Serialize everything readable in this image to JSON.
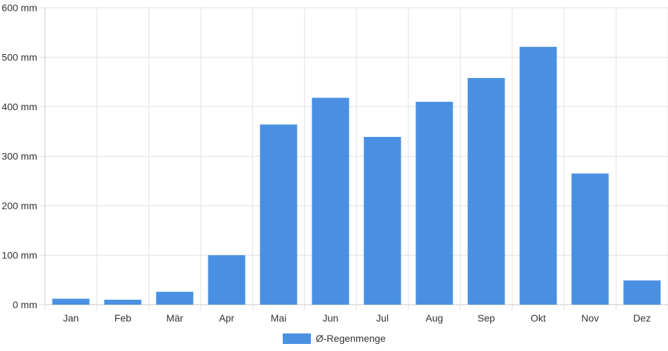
{
  "chart_data": {
    "type": "bar",
    "categories": [
      "Jan",
      "Feb",
      "Mär",
      "Apr",
      "Mai",
      "Jun",
      "Jul",
      "Aug",
      "Sep",
      "Okt",
      "Nov",
      "Dez"
    ],
    "series": [
      {
        "name": "Ø-Regenmenge",
        "values": [
          12,
          10,
          26,
          100,
          364,
          418,
          339,
          410,
          458,
          521,
          265,
          49
        ],
        "color": "#4a90e2"
      }
    ],
    "unit": "mm",
    "y_ticks": [
      "0 mm",
      "100 mm",
      "200 mm",
      "300 mm",
      "400 mm",
      "500 mm",
      "600 mm"
    ],
    "ylim": [
      0,
      600
    ],
    "grid": true,
    "legend_position": "bottom-center"
  }
}
